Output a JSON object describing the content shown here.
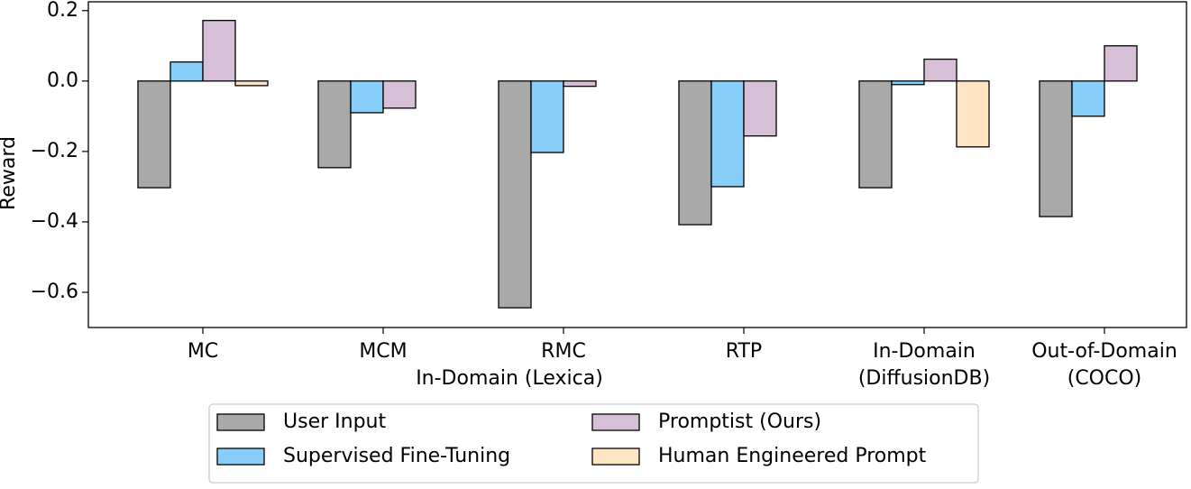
{
  "chart_data": {
    "type": "bar",
    "y_label": "Reward",
    "categories": [
      [
        "MC"
      ],
      [
        "MCM"
      ],
      [
        "RMC"
      ],
      [
        "RTP"
      ],
      [
        "In-Domain",
        "(DiffusionDB)"
      ],
      [
        "Out-of-Domain",
        "(COCO)"
      ]
    ],
    "group_label": "In-Domain (Lexica)",
    "series": [
      {
        "name": "User Input",
        "color": "#a9a9a9",
        "values": [
          -0.303,
          -0.246,
          -0.644,
          -0.408,
          -0.303,
          -0.385
        ]
      },
      {
        "name": "Supervised Fine-Tuning",
        "color": "#87cefa",
        "values": [
          0.054,
          -0.09,
          -0.203,
          -0.3,
          -0.01,
          -0.1
        ]
      },
      {
        "name": "Promptist (Ours)",
        "color": "#d8bfd8",
        "values": [
          0.172,
          -0.077,
          -0.015,
          -0.156,
          0.062,
          0.1
        ]
      },
      {
        "name": "Human Engineered Prompt",
        "color": "#ffe4c4",
        "values": [
          -0.013,
          null,
          null,
          null,
          -0.187,
          null
        ]
      }
    ],
    "ylim": [
      -0.7,
      0.225
    ],
    "yticks": [
      {
        "value": 0.2,
        "label": "0.2"
      },
      {
        "value": 0.0,
        "label": "0.0"
      },
      {
        "value": -0.2,
        "label": "−0.2"
      },
      {
        "value": -0.4,
        "label": "−0.4"
      },
      {
        "value": -0.6,
        "label": "−0.6"
      }
    ],
    "legend": "bottom"
  }
}
